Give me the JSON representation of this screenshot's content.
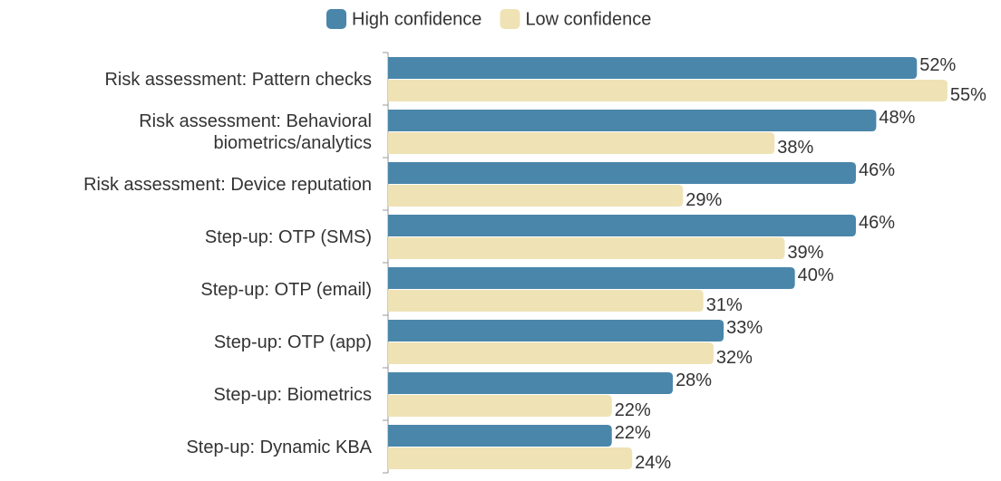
{
  "chart_data": {
    "type": "bar",
    "orientation": "horizontal",
    "categories": [
      "Risk assessment: Pattern checks",
      "Risk assessment: Behavioral biometrics/analytics",
      "Risk assessment: Device reputation",
      "Step-up: OTP (SMS)",
      "Step-up: OTP (email)",
      "Step-up: OTP (app)",
      "Step-up: Biometrics",
      "Step-up: Dynamic KBA"
    ],
    "series": [
      {
        "name": "High confidence",
        "color": "#4a86aa",
        "values": [
          52,
          48,
          46,
          46,
          40,
          33,
          28,
          22
        ],
        "value_labels": [
          "52%",
          "48%",
          "46%",
          "46%",
          "40%",
          "33%",
          "28%",
          "22%"
        ]
      },
      {
        "name": "Low confidence",
        "color": "#efe2b5",
        "values": [
          55,
          38,
          29,
          39,
          31,
          32,
          22,
          24
        ],
        "value_labels": [
          "55%",
          "38%",
          "29%",
          "39%",
          "31%",
          "32%",
          "22%",
          "24%"
        ]
      }
    ],
    "xlim": [
      0,
      60
    ],
    "legend": "top"
  }
}
